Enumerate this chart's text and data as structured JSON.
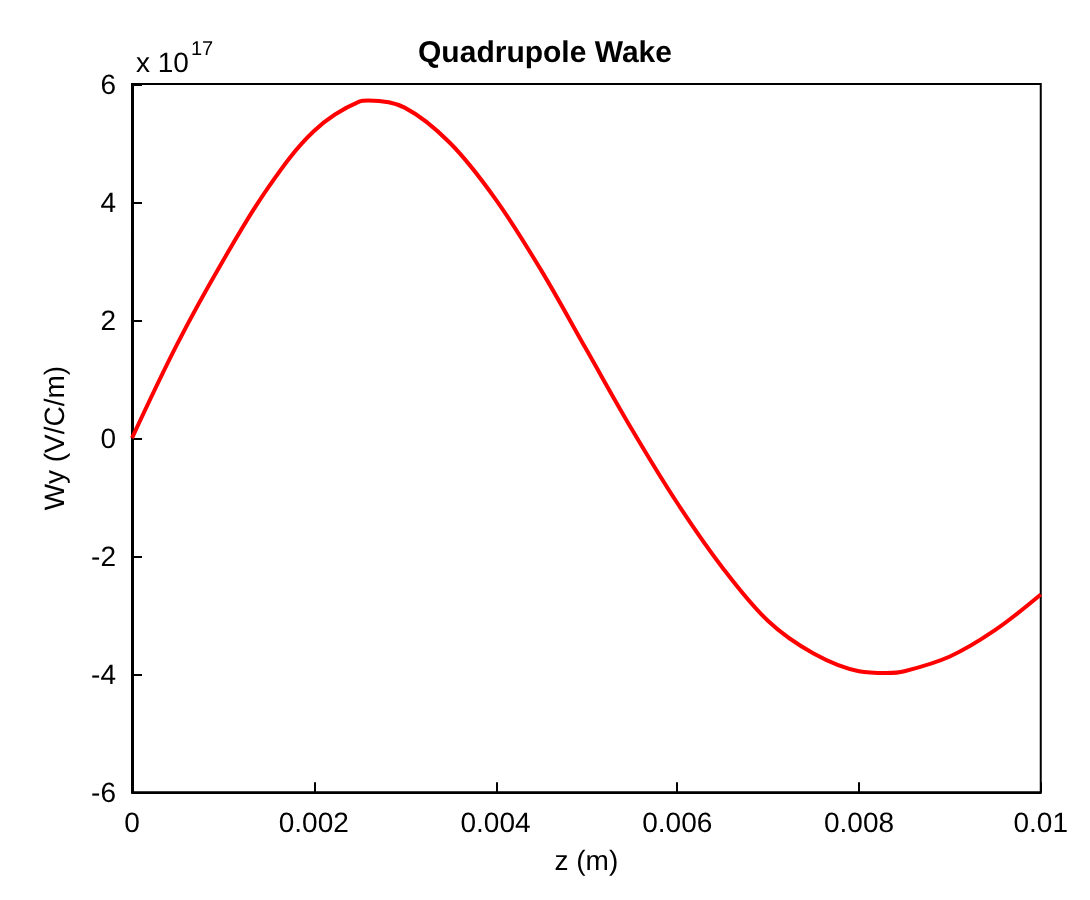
{
  "chart_data": {
    "type": "line",
    "title": "Quadrupole Wake",
    "xlabel": "z (m)",
    "ylabel": "Wy (V/C/m)",
    "annotations": [
      "x 10$^{17}$"
    ],
    "x": [
      0,
      0.0005,
      0.001,
      0.0015,
      0.002,
      0.0025,
      0.0026,
      0.003,
      0.0035,
      0.004,
      0.0045,
      0.005,
      0.0055,
      0.006,
      0.0065,
      0.007,
      0.0075,
      0.008,
      0.0083,
      0.0085,
      0.009,
      0.0095,
      0.01
    ],
    "series": [
      {
        "color": "#ff0000",
        "values": [
          0,
          1.6,
          3.0,
          4.25,
          5.2,
          5.7,
          5.72,
          5.6,
          5.0,
          4.05,
          2.85,
          1.5,
          0.15,
          -1.1,
          -2.2,
          -3.1,
          -3.65,
          -3.95,
          -3.98,
          -3.95,
          -3.7,
          -3.25,
          -2.65
        ]
      }
    ],
    "xlim": [
      0,
      0.01
    ],
    "xticks": [
      0,
      0.002,
      0.004,
      0.006,
      0.008,
      0.01
    ],
    "ylim": [
      -6,
      6
    ],
    "yticks": [
      -6,
      -4,
      -2,
      0,
      2,
      4,
      6
    ],
    "grid": false,
    "marker": "none",
    "line_style": "solid"
  }
}
